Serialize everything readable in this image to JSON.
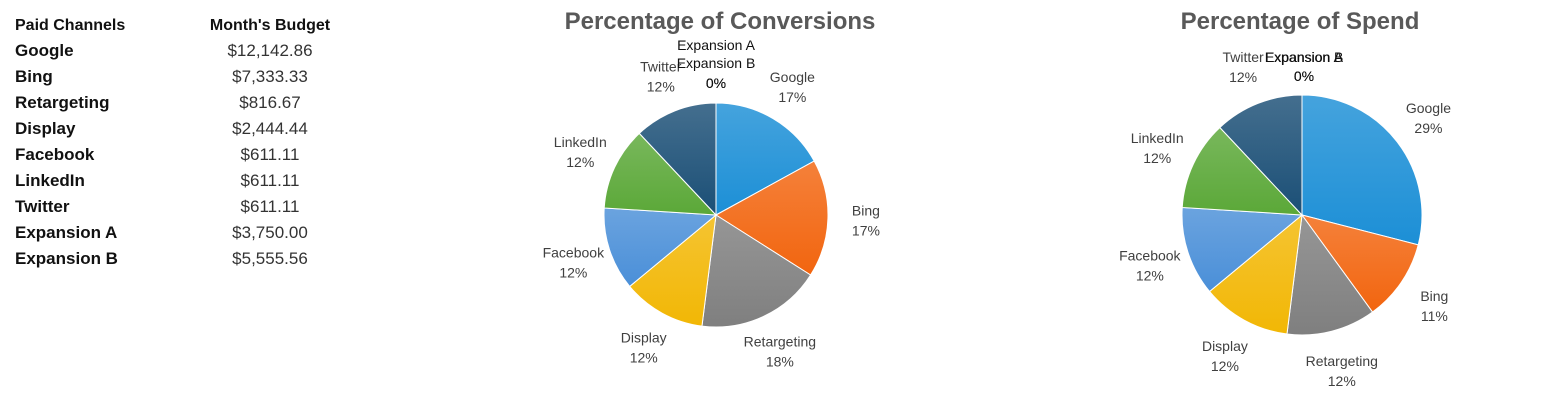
{
  "table": {
    "headers": [
      "Paid Channels",
      "Month's Budget"
    ],
    "rows": [
      [
        "Google",
        "$12,142.86"
      ],
      [
        "Bing",
        "$7,333.33"
      ],
      [
        "Retargeting",
        "$816.67"
      ],
      [
        "Display",
        "$2,444.44"
      ],
      [
        "Facebook",
        "$611.11"
      ],
      [
        "LinkedIn",
        "$611.11"
      ],
      [
        "Twitter",
        "$611.11"
      ],
      [
        "Expansion A",
        "$3,750.00"
      ],
      [
        "Expansion B",
        "$5,555.56"
      ]
    ]
  },
  "chart_data": [
    {
      "type": "pie",
      "title": "Percentage of Conversions",
      "slices": [
        {
          "label": "Google",
          "value": 17,
          "pct": "17%",
          "color": "#1c8fd6"
        },
        {
          "label": "Bing",
          "value": 17,
          "pct": "17%",
          "color": "#f2650f"
        },
        {
          "label": "Retargeting",
          "value": 18,
          "pct": "18%",
          "color": "#7f7f7f"
        },
        {
          "label": "Display",
          "value": 12,
          "pct": "12%",
          "color": "#f2b705"
        },
        {
          "label": "Facebook",
          "value": 12,
          "pct": "12%",
          "color": "#4a8fd8"
        },
        {
          "label": "LinkedIn",
          "value": 12,
          "pct": "12%",
          "color": "#5ba838"
        },
        {
          "label": "Twitter",
          "value": 12,
          "pct": "12%",
          "color": "#1b4f76"
        },
        {
          "label": "Expansion A",
          "value": 0,
          "pct": "0%",
          "color": "#1b4f76"
        },
        {
          "label": "Expansion B",
          "value": 0,
          "pct": "0%",
          "color": "#1b4f76"
        }
      ]
    },
    {
      "type": "pie",
      "title": "Percentage of Spend",
      "slices": [
        {
          "label": "Google",
          "value": 29,
          "pct": "29%",
          "color": "#1c8fd6"
        },
        {
          "label": "Bing",
          "value": 11,
          "pct": "11%",
          "color": "#f2650f"
        },
        {
          "label": "Retargeting",
          "value": 12,
          "pct": "12%",
          "color": "#7f7f7f"
        },
        {
          "label": "Display",
          "value": 12,
          "pct": "12%",
          "color": "#f2b705"
        },
        {
          "label": "Facebook",
          "value": 12,
          "pct": "12%",
          "color": "#4a8fd8"
        },
        {
          "label": "LinkedIn",
          "value": 12,
          "pct": "12%",
          "color": "#5ba838"
        },
        {
          "label": "Twitter",
          "value": 12,
          "pct": "12%",
          "color": "#1b4f76"
        },
        {
          "label": "Expansion A",
          "value": 0,
          "pct": "0%",
          "color": "#1b4f76"
        },
        {
          "label": "Expansion B",
          "value": 0,
          "pct": "0%",
          "color": "#1b4f76"
        }
      ]
    }
  ]
}
